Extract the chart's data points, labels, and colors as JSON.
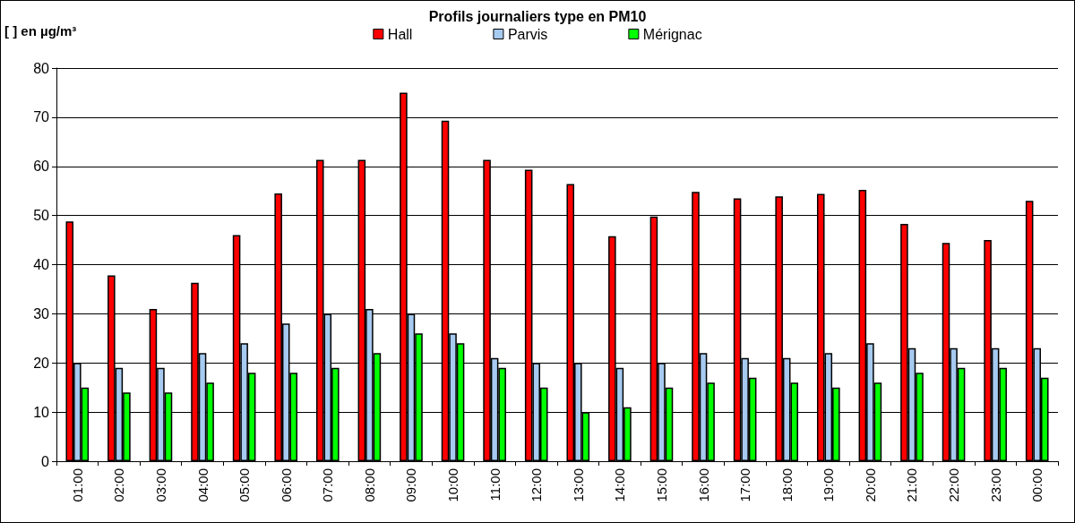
{
  "chart_data": {
    "type": "bar",
    "title": "Profils journaliers type en PM10",
    "ylabel": "[ ] en µg/m³",
    "categories": [
      "01:00",
      "02:00",
      "03:00",
      "04:00",
      "05:00",
      "06:00",
      "07:00",
      "08:00",
      "09:00",
      "10:00",
      "11:00",
      "12:00",
      "13:00",
      "14:00",
      "15:00",
      "16:00",
      "17:00",
      "18:00",
      "19:00",
      "20:00",
      "21:00",
      "22:00",
      "23:00",
      "00:00"
    ],
    "series": [
      {
        "name": "Hall",
        "color": "#ff0000",
        "values": [
          48.8,
          37.8,
          31,
          36.3,
          46,
          54.5,
          61.3,
          61.3,
          75,
          69.3,
          61.3,
          59.3,
          56.4,
          45.8,
          49.8,
          54.8,
          53.5,
          53.9,
          54.4,
          55.2,
          48.3,
          44.4,
          45,
          53
        ]
      },
      {
        "name": "Parvis",
        "color": "#a6caf0",
        "values": [
          20,
          19,
          19,
          22,
          24,
          28,
          30,
          31,
          30,
          26,
          21,
          20,
          20,
          19,
          20,
          22,
          21,
          21,
          22,
          24,
          23,
          23,
          23,
          23
        ]
      },
      {
        "name": "Mérignac",
        "color": "#00ff00",
        "values": [
          15,
          14,
          14,
          16,
          18,
          18,
          19,
          22,
          26,
          24,
          19,
          15,
          10,
          11,
          15,
          16,
          17,
          16,
          15,
          16,
          18,
          19,
          19,
          17
        ]
      }
    ],
    "ylim": [
      0,
      80
    ],
    "yticks": [
      0,
      10,
      20,
      30,
      40,
      50,
      60,
      70,
      80
    ],
    "grid": "y",
    "legend": "top"
  }
}
